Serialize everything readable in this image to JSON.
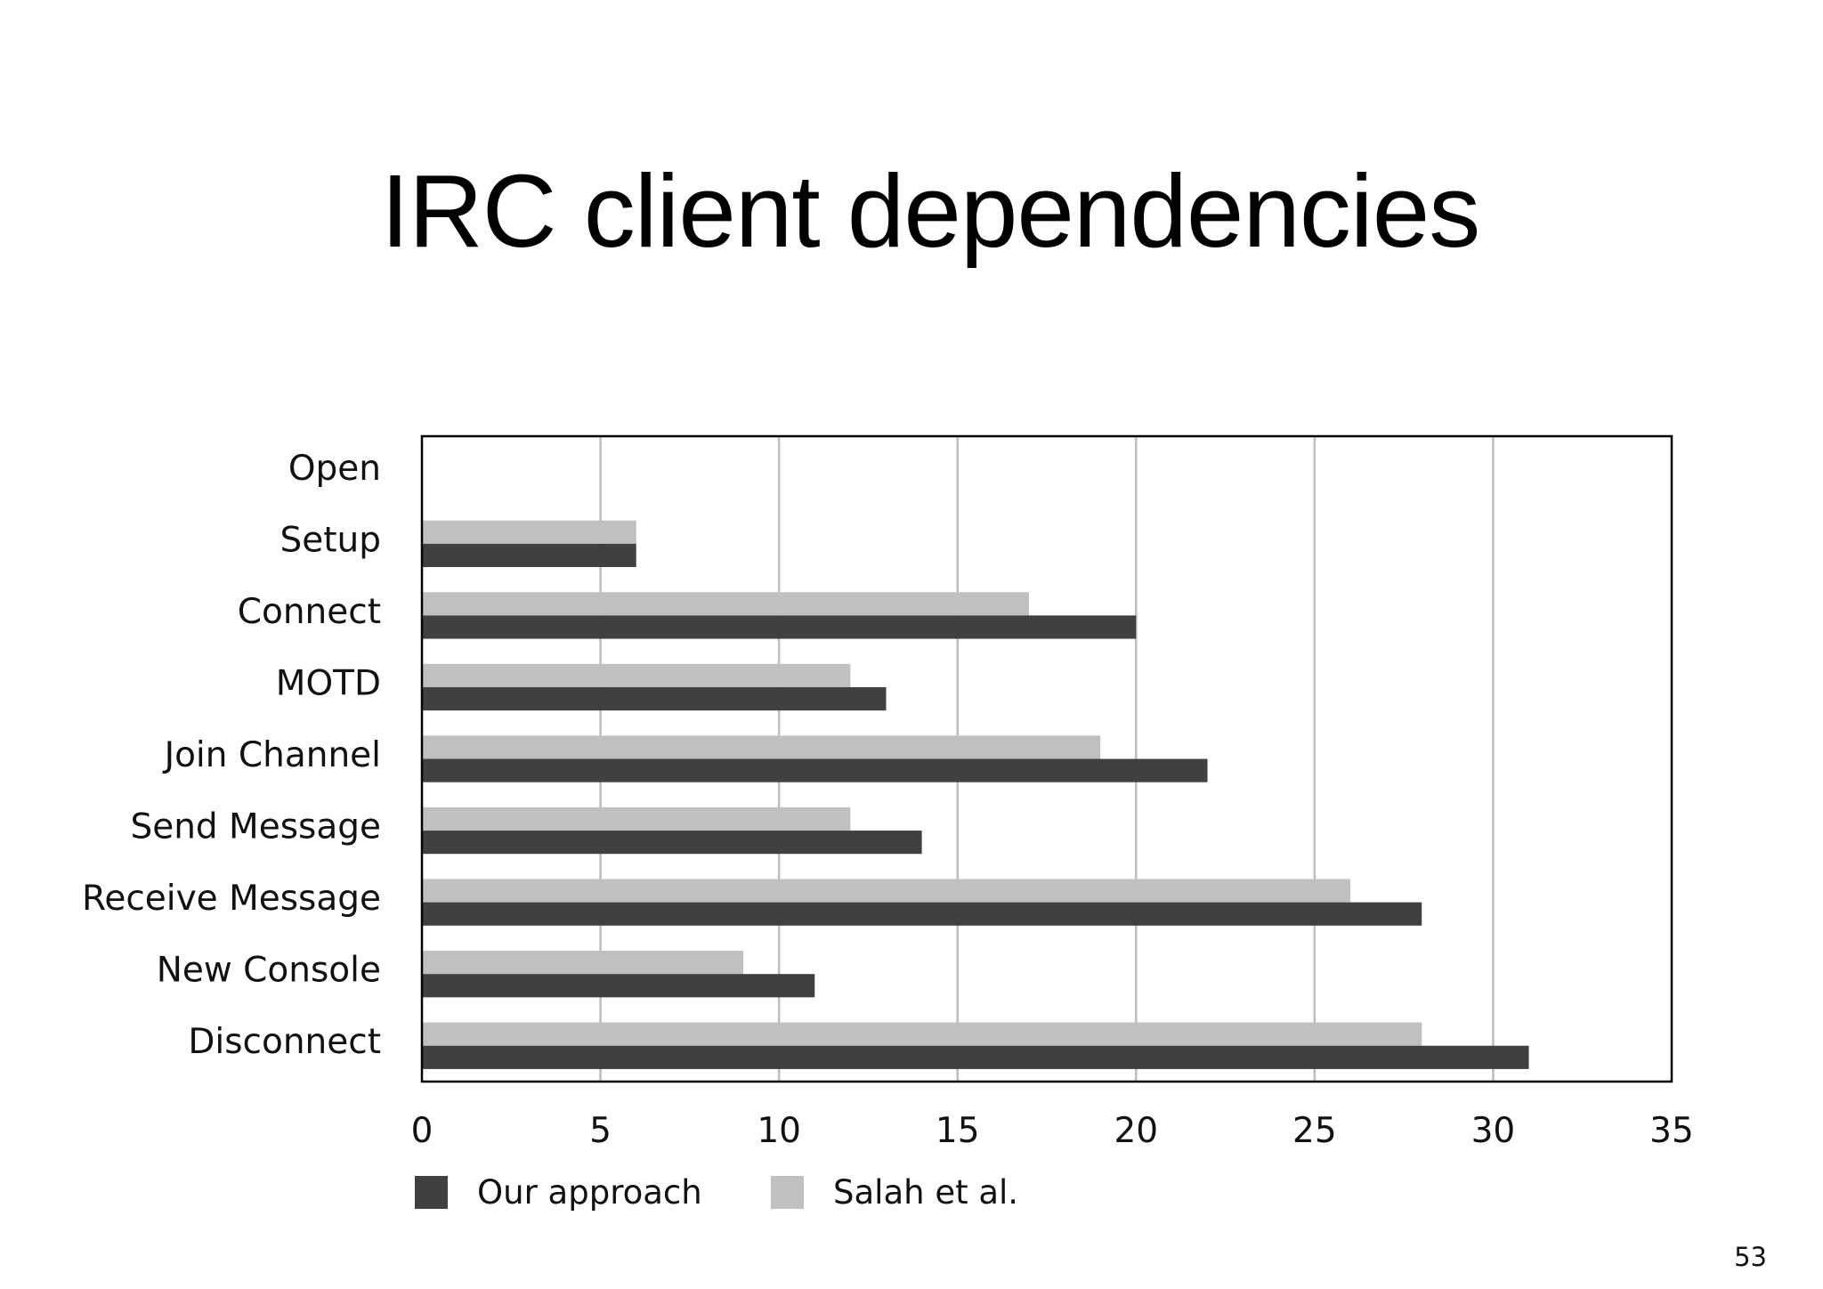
{
  "slide": {
    "title": "IRC client dependencies",
    "page_number": "53"
  },
  "chart_data": {
    "type": "bar",
    "orientation": "horizontal",
    "categories": [
      "Open",
      "Setup",
      "Connect",
      "MOTD",
      "Join Channel",
      "Send Message",
      "Receive Message",
      "New Console",
      "Disconnect"
    ],
    "series": [
      {
        "name": "Our approach",
        "color": "#404040",
        "values": [
          0,
          6,
          20,
          13,
          22,
          14,
          28,
          11,
          31
        ]
      },
      {
        "name": "Salah et al.",
        "color": "#c0c0c0",
        "values": [
          0,
          6,
          17,
          12,
          19,
          12,
          26,
          9,
          28
        ]
      }
    ],
    "xlim": [
      0,
      35
    ],
    "x_ticks": [
      "0",
      "5",
      "10",
      "15",
      "20",
      "25",
      "30",
      "35"
    ],
    "grid": "vertical",
    "legend": "bottom-left"
  }
}
